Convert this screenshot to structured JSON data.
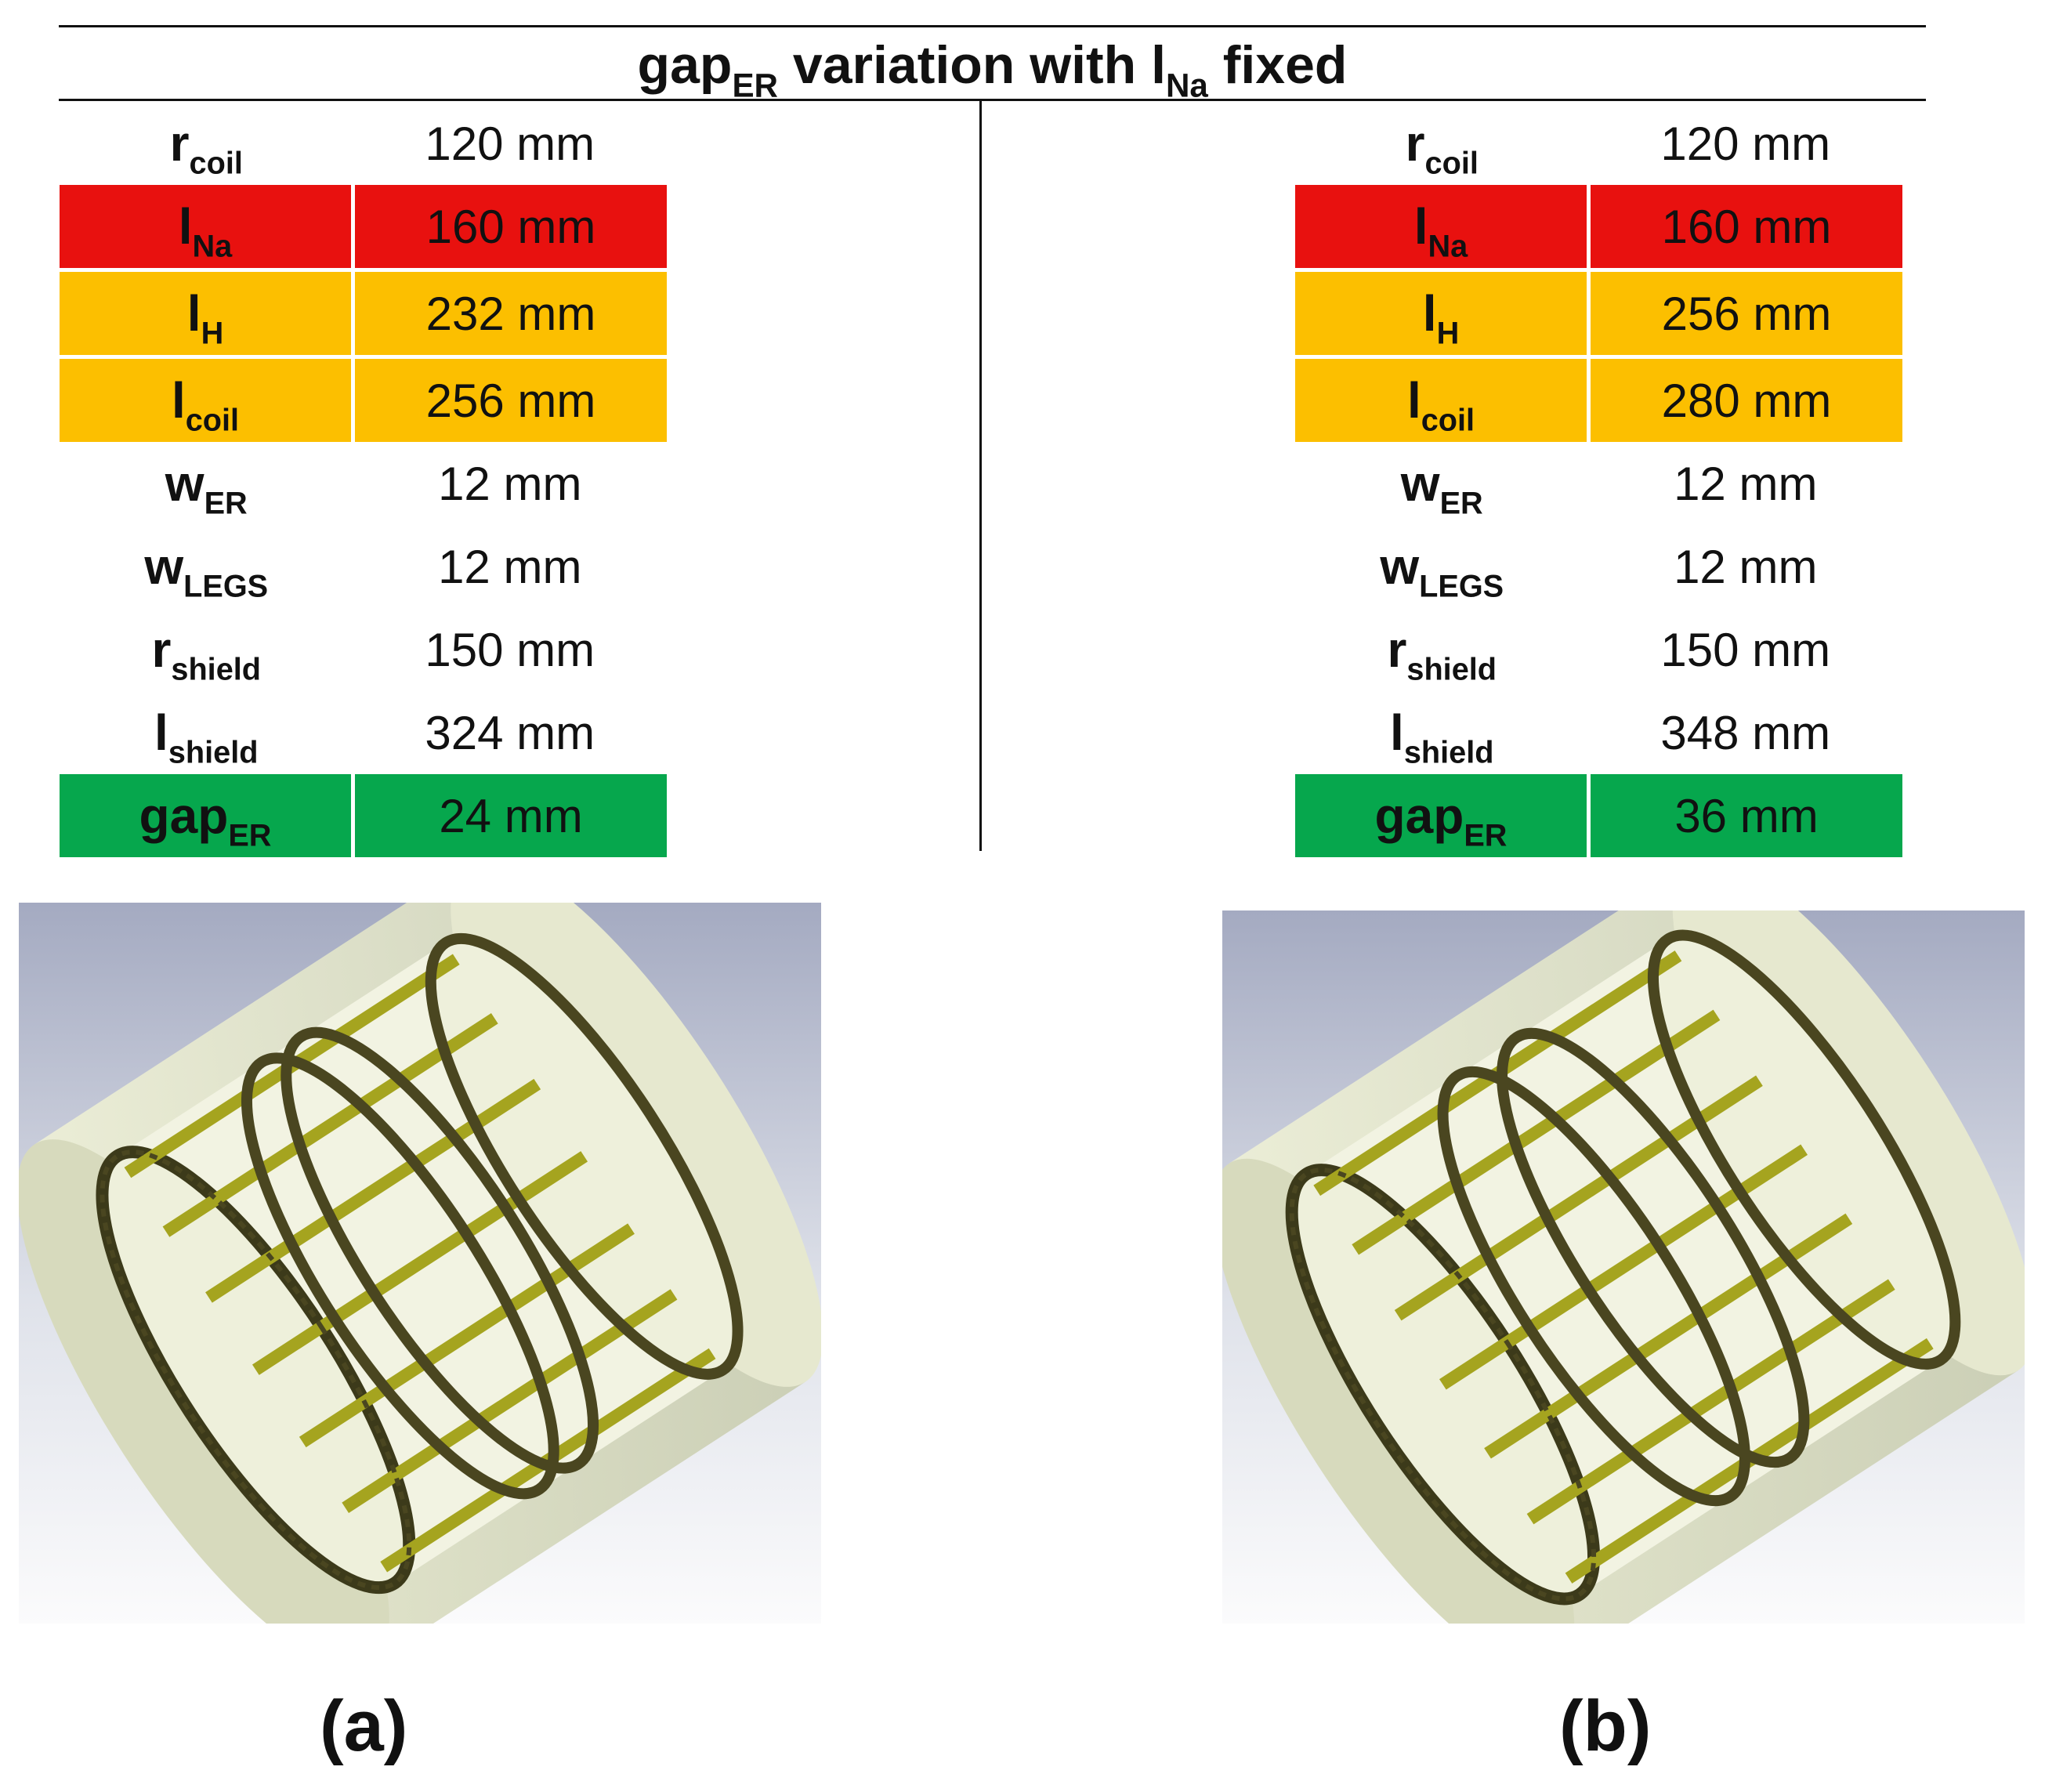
{
  "header": {
    "title_prefix": "gap",
    "title_prefix_sub": "ER",
    "title_middle": " variation with l",
    "title_middle_sub": "Na",
    "title_suffix": " fixed"
  },
  "tables": [
    {
      "panel": "a",
      "rows": [
        {
          "symbol": "r",
          "subscript": "coil",
          "value": "120 mm",
          "highlight": "none"
        },
        {
          "symbol": "l",
          "subscript": "Na",
          "value": "160 mm",
          "highlight": "red"
        },
        {
          "symbol": "l",
          "subscript": "H",
          "value": "232 mm",
          "highlight": "orange"
        },
        {
          "symbol": "l",
          "subscript": "coil",
          "value": "256 mm",
          "highlight": "orange"
        },
        {
          "symbol": "w",
          "subscript": "ER",
          "value": "12 mm",
          "highlight": "none"
        },
        {
          "symbol": "w",
          "subscript": "LEGS",
          "value": "12 mm",
          "highlight": "none"
        },
        {
          "symbol": "r",
          "subscript": "shield",
          "value": "150 mm",
          "highlight": "none"
        },
        {
          "symbol": "l",
          "subscript": "shield",
          "value": "324 mm",
          "highlight": "none"
        },
        {
          "symbol": "gap",
          "subscript": "ER",
          "value": "24 mm",
          "highlight": "green"
        }
      ]
    },
    {
      "panel": "b",
      "rows": [
        {
          "symbol": "r",
          "subscript": "coil",
          "value": "120 mm",
          "highlight": "none"
        },
        {
          "symbol": "l",
          "subscript": "Na",
          "value": "160 mm",
          "highlight": "red"
        },
        {
          "symbol": "l",
          "subscript": "H",
          "value": "256 mm",
          "highlight": "orange"
        },
        {
          "symbol": "l",
          "subscript": "coil",
          "value": "280 mm",
          "highlight": "orange"
        },
        {
          "symbol": "w",
          "subscript": "ER",
          "value": "12 mm",
          "highlight": "none"
        },
        {
          "symbol": "w",
          "subscript": "LEGS",
          "value": "12 mm",
          "highlight": "none"
        },
        {
          "symbol": "r",
          "subscript": "shield",
          "value": "150 mm",
          "highlight": "none"
        },
        {
          "symbol": "l",
          "subscript": "shield",
          "value": "348 mm",
          "highlight": "none"
        },
        {
          "symbol": "gap",
          "subscript": "ER",
          "value": "36 mm",
          "highlight": "green"
        }
      ]
    }
  ],
  "highlight_colors": {
    "red": "#e8110f",
    "orange": "#fcbf00",
    "green": "#06a74d"
  },
  "figures": [
    {
      "panel": "a",
      "icon": "coil-cylinder-render",
      "gap_er_mm": 24
    },
    {
      "panel": "b",
      "icon": "coil-cylinder-render",
      "gap_er_mm": 36
    }
  ],
  "panel_labels": {
    "a": "(a)",
    "b": "(b)"
  }
}
